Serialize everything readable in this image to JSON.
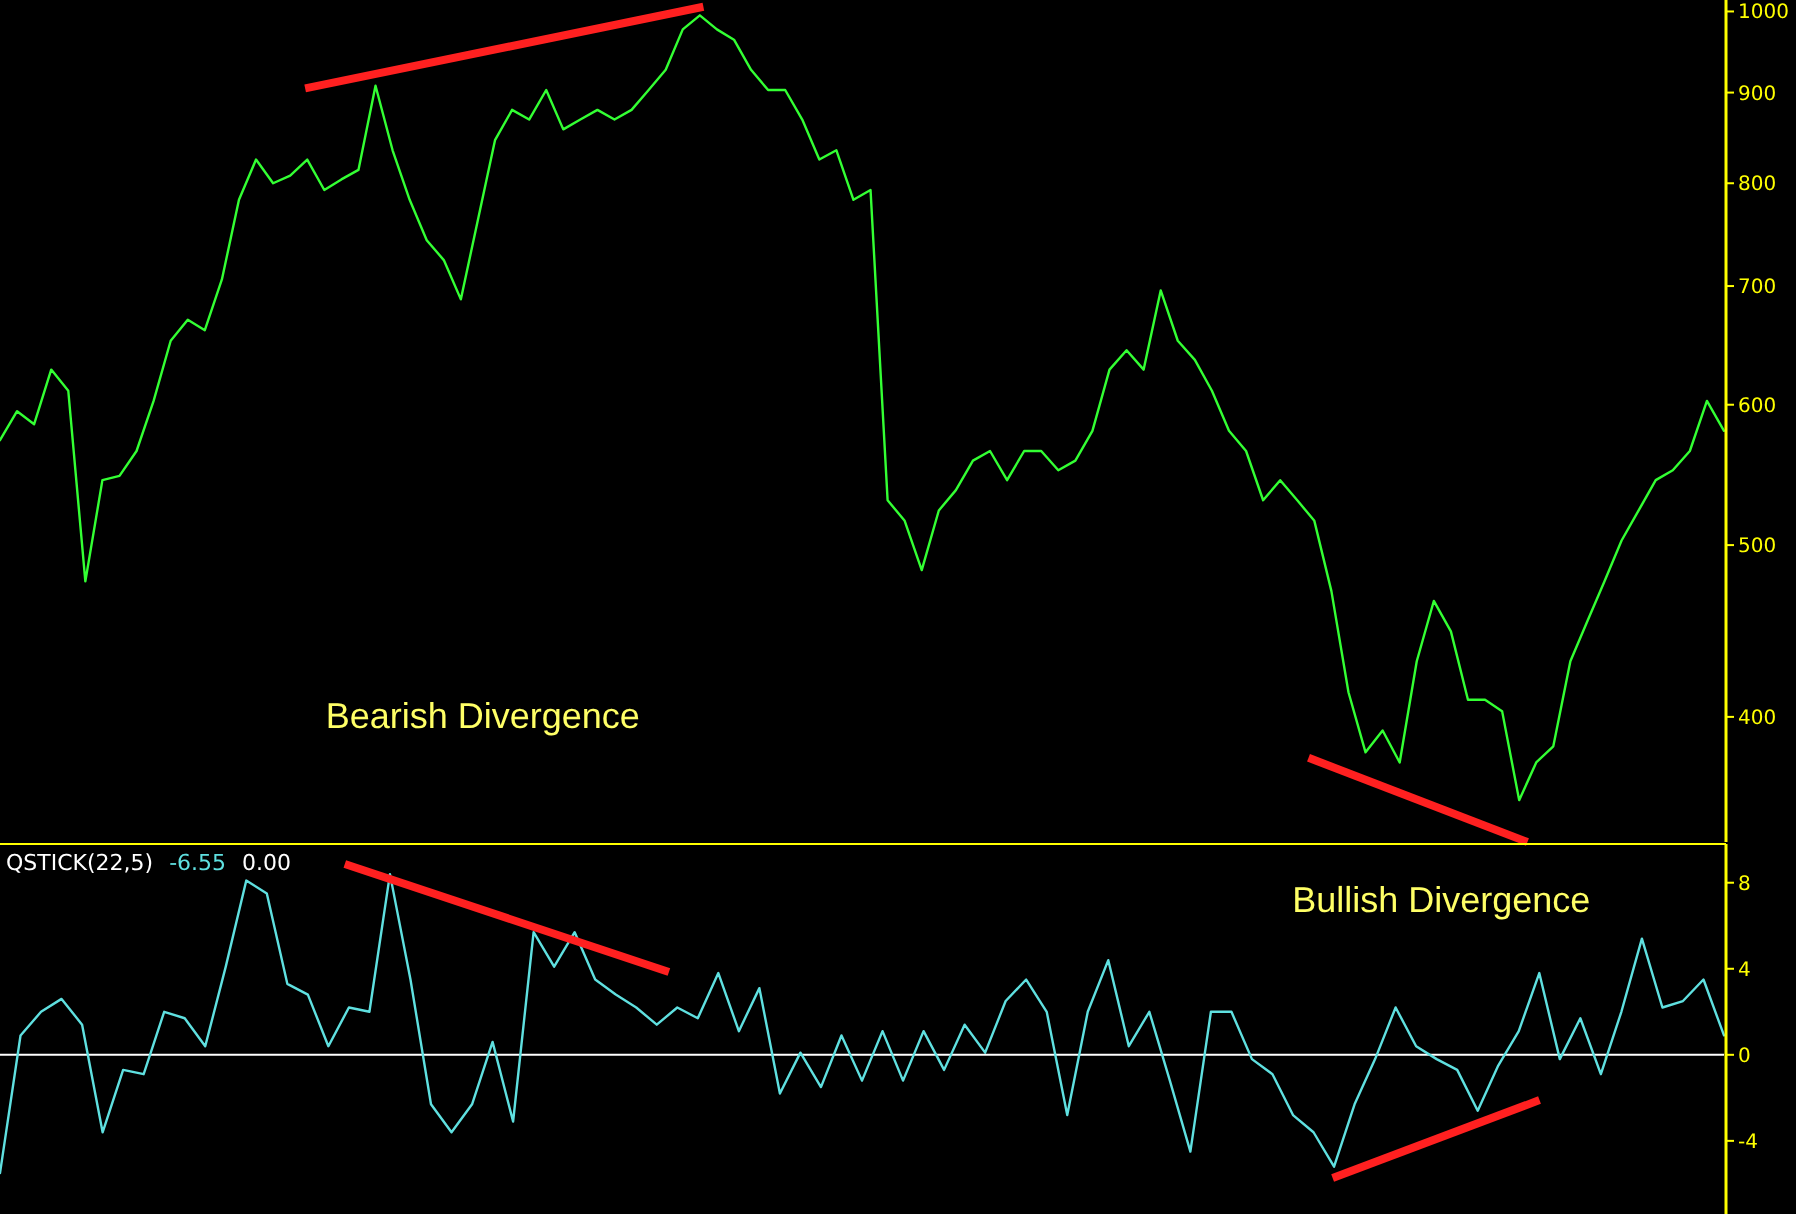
{
  "chart_data": [
    {
      "type": "line",
      "log": true,
      "ylim": [
        340,
        1015
      ],
      "yticks": [
        400,
        500,
        600,
        700,
        800,
        900,
        1000
      ],
      "tick_labels": "y",
      "categories": [
        null,
        null,
        null,
        null,
        null,
        null,
        null,
        null,
        null,
        null,
        null,
        null,
        null,
        null,
        null,
        null,
        null,
        null,
        null,
        null,
        null,
        null,
        null,
        null,
        null,
        null,
        null,
        null,
        null,
        null,
        null,
        null,
        null,
        null,
        null,
        null,
        null,
        null,
        null,
        null,
        null,
        null,
        null,
        null,
        null,
        null,
        null,
        null,
        null,
        null,
        null,
        null,
        null,
        null,
        null,
        null,
        null,
        null,
        null,
        null,
        null,
        null,
        null,
        null,
        null,
        null,
        null,
        null,
        null,
        null,
        null,
        null,
        null,
        null,
        null,
        null,
        null,
        null,
        null,
        null,
        null,
        null,
        null,
        null,
        null,
        null,
        null,
        null,
        null,
        null,
        null,
        null,
        null,
        null,
        null,
        null,
        null,
        null,
        null,
        null,
        null,
        null
      ],
      "series": [
        {
          "color": "#33ff33",
          "values": [
            573,
            595,
            585,
            628,
            611,
            477,
            544,
            547,
            565,
            603,
            652,
            670,
            661,
            706,
            783,
            825,
            800,
            808,
            825,
            793,
            804,
            814,
            908,
            835,
            783,
            743,
            724,
            688,
            763,
            846,
            880,
            869,
            903,
            858,
            869,
            880,
            869,
            880,
            903,
            927,
            977,
            995,
            977,
            964,
            927,
            903,
            903,
            869,
            825,
            835,
            783,
            793,
            530,
            516,
            484,
            523,
            537,
            558,
            565,
            544,
            565,
            565,
            551,
            558,
            580,
            628,
            644,
            628,
            696,
            652,
            636,
            611,
            580,
            565,
            530,
            544,
            530,
            516,
            471,
            413,
            382,
            393,
            377,
            430,
            465,
            447,
            409,
            409,
            403,
            359,
            377,
            385,
            430,
            453,
            477,
            503,
            523,
            544,
            551,
            565,
            603,
            580
          ]
        }
      ],
      "annotations": [
        "Bearish Divergence"
      ]
    },
    {
      "type": "line",
      "title": "QSTICK(22,5)",
      "ylim": [
        -7.4,
        9.8
      ],
      "yticks": [
        -4,
        0,
        4,
        8
      ],
      "tick_labels": "y",
      "categories": [
        null,
        null,
        null,
        null,
        null,
        null,
        null,
        null,
        null,
        null,
        null,
        null,
        null,
        null,
        null,
        null,
        null,
        null,
        null,
        null,
        null,
        null,
        null,
        null,
        null,
        null,
        null,
        null,
        null,
        null,
        null,
        null,
        null,
        null,
        null,
        null,
        null,
        null,
        null,
        null,
        null,
        null,
        null,
        null,
        null,
        null,
        null,
        null,
        null,
        null,
        null,
        null,
        null,
        null,
        null,
        null,
        null,
        null,
        null,
        null,
        null,
        null,
        null,
        null,
        null,
        null,
        null,
        null,
        null,
        null,
        null,
        null,
        null,
        null,
        null,
        null,
        null,
        null,
        null,
        null,
        null,
        null,
        null,
        null,
        null
      ],
      "ref_lines": [
        {
          "axis": "y",
          "value": 0,
          "color": "#ffffff"
        }
      ],
      "series": [
        {
          "color": "#5fe0e0",
          "values": [
            -5.5,
            0.9,
            2,
            2.6,
            1.4,
            -3.6,
            -0.7,
            -0.9,
            2,
            1.7,
            0.4,
            4.1,
            8.1,
            7.5,
            3.3,
            2.8,
            0.4,
            2.2,
            2,
            8.4,
            3.5,
            -2.3,
            -3.6,
            -2.3,
            0.6,
            -3.1,
            5.7,
            4.1,
            5.7,
            3.5,
            2.8,
            2.2,
            1.4,
            2.2,
            1.7,
            3.8,
            1.1,
            3.1,
            -1.8,
            0.1,
            -1.5,
            0.9,
            -1.2,
            1.1,
            -1.2,
            1.1,
            -0.7,
            1.4,
            0.1,
            2.5,
            3.5,
            2,
            -2.8,
            2,
            4.4,
            0.4,
            2,
            -1.2,
            -4.5,
            2,
            2,
            -0.2,
            -0.9,
            -2.8,
            -3.6,
            -5.2,
            -2.3,
            -0.2,
            2.2,
            0.4,
            -0.2,
            -0.7,
            -2.6,
            -0.5,
            1.1,
            3.8,
            -0.2,
            1.7,
            -0.9,
            2,
            5.4,
            2.2,
            2.5,
            3.5,
            0.9
          ]
        }
      ],
      "annotations": [
        "-6.55",
        "0.00",
        "Bullish Divergence"
      ]
    }
  ]
}
